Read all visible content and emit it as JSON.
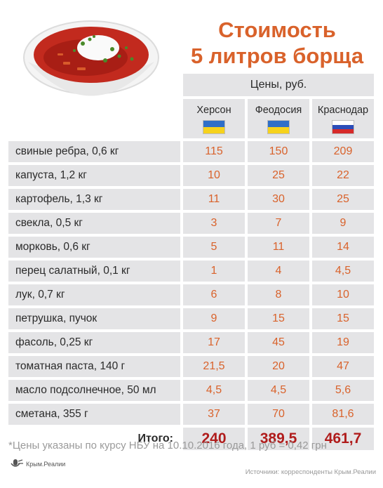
{
  "title_line1": "Стоимость",
  "title_line2": "5 литров борща",
  "chart_data": {
    "type": "table",
    "price_header": "Цены, руб.",
    "columns": [
      {
        "name": "Херсон",
        "flag": "ukraine"
      },
      {
        "name": "Феодосия",
        "flag": "ukraine"
      },
      {
        "name": "Краснодар",
        "flag": "russia"
      }
    ],
    "rows": [
      {
        "item": "свиные ребра, 0,6 кг",
        "values": [
          "115",
          "150",
          "209"
        ]
      },
      {
        "item": "капуста, 1,2 кг",
        "values": [
          "10",
          "25",
          "22"
        ]
      },
      {
        "item": "картофель, 1,3 кг",
        "values": [
          "11",
          "30",
          "25"
        ]
      },
      {
        "item": "свекла, 0,5 кг",
        "values": [
          "3",
          "7",
          "9"
        ]
      },
      {
        "item": "морковь, 0,6 кг",
        "values": [
          "5",
          "11",
          "14"
        ]
      },
      {
        "item": "перец салатный, 0,1 кг",
        "values": [
          "1",
          "4",
          "4,5"
        ]
      },
      {
        "item": "лук, 0,7 кг",
        "values": [
          "6",
          "8",
          "10"
        ]
      },
      {
        "item": "петрушка, пучок",
        "values": [
          "9",
          "15",
          "15"
        ]
      },
      {
        "item": "фасоль, 0,25 кг",
        "values": [
          "17",
          "45",
          "19"
        ]
      },
      {
        "item": "томатная паста, 140 г",
        "values": [
          "21,5",
          "20",
          "47"
        ]
      },
      {
        "item": "масло подсолнечное, 50 мл",
        "values": [
          "4,5",
          "4,5",
          "5,6"
        ]
      },
      {
        "item": "сметана, 355 г",
        "values": [
          "37",
          "70",
          "81,6"
        ]
      }
    ],
    "total_label": "Итого:",
    "totals": [
      "240",
      "389,5",
      "461,7"
    ]
  },
  "footnote": "*Цены указаны по курсу НБУ на 10.10.2016 года, 1 руб =  0,42 грн",
  "logo_text": "Крым.Реалии",
  "source": "Источники: корреспонденты Крым.Реалии",
  "colors": {
    "accent": "#d9622b",
    "total": "#b01c1c",
    "cell_bg": "#e4e4e6"
  }
}
